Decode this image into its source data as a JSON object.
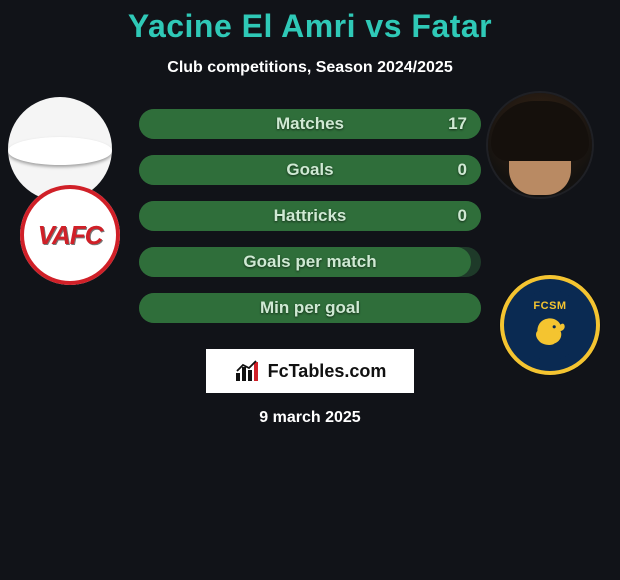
{
  "colors": {
    "page_bg": "#111318",
    "title": "#2fc9b7",
    "text_light": "#ffffff",
    "bar_track": "#1e3a29",
    "bar_fill": "#2f6e3a",
    "bar_label": "#cfe9d3",
    "attribution_bg": "#ffffff",
    "attribution_accent": "#d02028"
  },
  "title": {
    "text": "Yacine El Amri vs Fatar",
    "fontsize": 32
  },
  "subtitle": {
    "text": "Club competitions, Season 2024/2025",
    "fontsize": 16
  },
  "player1": {
    "name": "Yacine El Amri",
    "club_abbr": "VAFC"
  },
  "player2": {
    "name": "Fatar",
    "club_abbr": "FCSM"
  },
  "bars": {
    "label_fontsize": 17,
    "value_fontsize": 17,
    "track_height": 30,
    "rows": [
      {
        "label": "Matches",
        "left_value": null,
        "right_value": "17",
        "fill_pct": 100
      },
      {
        "label": "Goals",
        "left_value": null,
        "right_value": "0",
        "fill_pct": 100
      },
      {
        "label": "Hattricks",
        "left_value": null,
        "right_value": "0",
        "fill_pct": 100
      },
      {
        "label": "Goals per match",
        "left_value": null,
        "right_value": null,
        "fill_pct": 97
      },
      {
        "label": "Min per goal",
        "left_value": null,
        "right_value": null,
        "fill_pct": 100
      }
    ]
  },
  "attribution": {
    "text": "FcTables.com"
  },
  "footer_date": {
    "text": "9 march 2025",
    "fontsize": 16
  }
}
